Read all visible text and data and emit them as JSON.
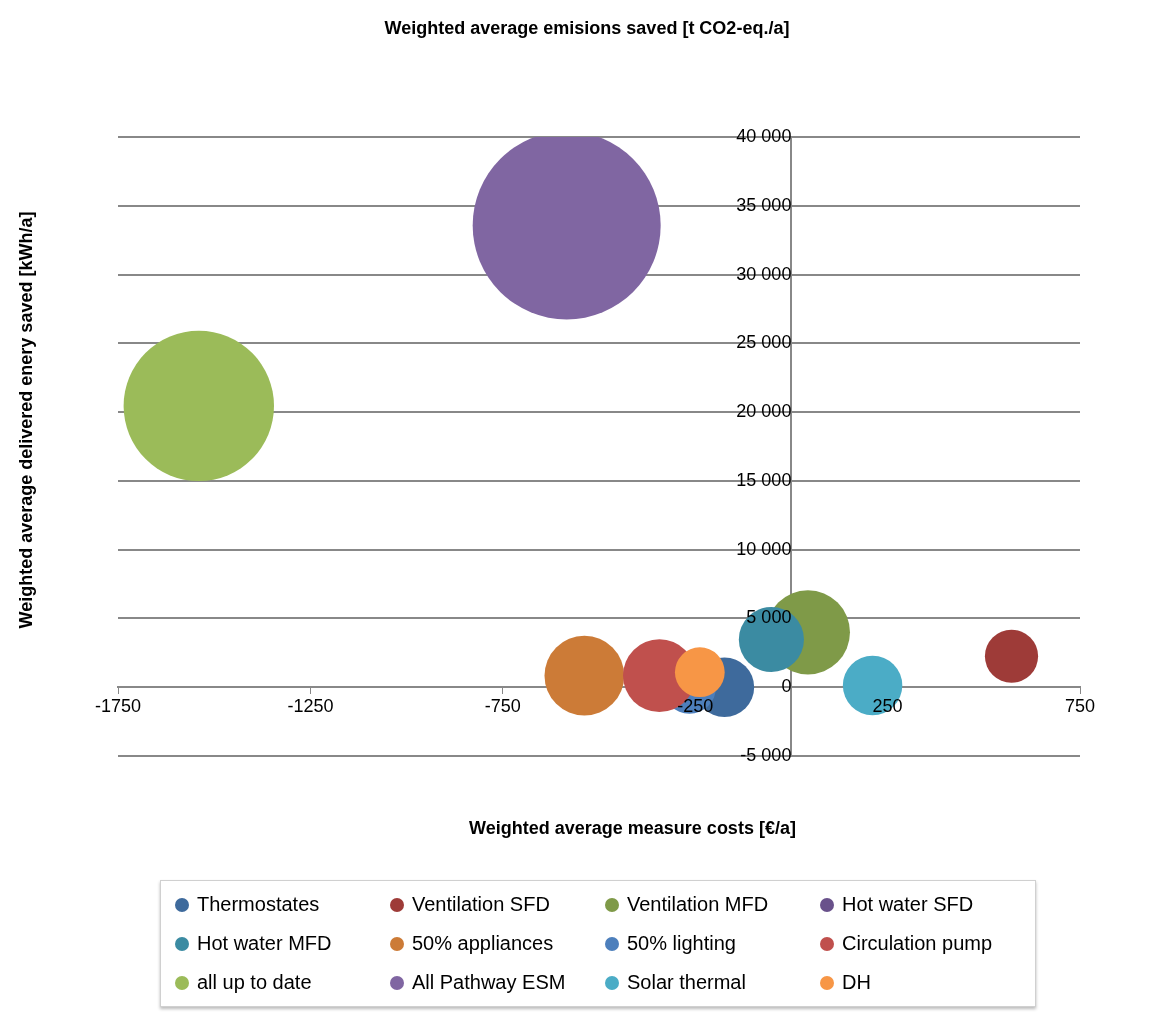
{
  "chart_data": {
    "type": "bubble",
    "title": "Weighted average emisions saved [t CO2-eq./a]",
    "xlabel": "Weighted average measure costs [€/a]",
    "ylabel": "Weighted average delivered enery saved [kWh/a]",
    "xlim": [
      -1750,
      750
    ],
    "xticks": [
      -1750,
      -1250,
      -750,
      -250,
      250,
      750
    ],
    "ylim": [
      -5000,
      40000
    ],
    "yticks": [
      {
        "value": -5000,
        "label": "-5 000"
      },
      {
        "value": 0,
        "label": "0"
      },
      {
        "value": 5000,
        "label": "5 000"
      },
      {
        "value": 10000,
        "label": "10 000"
      },
      {
        "value": 15000,
        "label": "15 000"
      },
      {
        "value": 20000,
        "label": "20 000"
      },
      {
        "value": 25000,
        "label": "25 000"
      },
      {
        "value": 30000,
        "label": "30 000"
      },
      {
        "value": 35000,
        "label": "35 000"
      },
      {
        "value": 40000,
        "label": "40 000"
      }
    ],
    "grid": "y",
    "legend": "bottom",
    "series": [
      {
        "name": "Thermostates",
        "color": "#3e6a9c",
        "x": [
          -174
        ],
        "values": [
          0
        ],
        "sizes": [
          0.1
        ]
      },
      {
        "name": "Ventilation SFD",
        "color": "#9e3b38",
        "x": [
          572
        ],
        "values": [
          2250
        ],
        "sizes": [
          0.08
        ]
      },
      {
        "name": "Ventilation MFD",
        "color": "#7f9a48",
        "x": [
          43
        ],
        "values": [
          3990
        ],
        "sizes": [
          0.2
        ]
      },
      {
        "name": "Hot water SFD",
        "color": "#69518b",
        "x": [
          null
        ],
        "values": [
          null
        ],
        "sizes": [
          null
        ]
      },
      {
        "name": "Hot water MFD",
        "color": "#3b8ba2",
        "x": [
          -52
        ],
        "values": [
          3470
        ],
        "sizes": [
          0.12
        ]
      },
      {
        "name": "50% appliances",
        "color": "#cc7b37",
        "x": [
          -538
        ],
        "values": [
          840
        ],
        "sizes": [
          0.18
        ]
      },
      {
        "name": "50% lighting",
        "color": "#4d7fbc",
        "x": [
          -265
        ],
        "values": [
          0
        ],
        "sizes": [
          0.08
        ]
      },
      {
        "name": "Circulation pump",
        "color": "#c0504d",
        "x": [
          -343
        ],
        "values": [
          840
        ],
        "sizes": [
          0.15
        ]
      },
      {
        "name": "all up to date",
        "color": "#9bbb59",
        "x": [
          -1540
        ],
        "values": [
          20450
        ],
        "sizes": [
          0.64
        ]
      },
      {
        "name": "All Pathway ESM",
        "color": "#8066a2",
        "x": [
          -584
        ],
        "values": [
          33570
        ],
        "sizes": [
          1
        ]
      },
      {
        "name": "Solar thermal",
        "color": "#4bacc6",
        "x": [
          211
        ],
        "values": [
          130
        ],
        "sizes": [
          0.1
        ]
      },
      {
        "name": "DH",
        "color": "#f79646",
        "x": [
          -238
        ],
        "values": [
          1090
        ],
        "sizes": [
          0.07
        ]
      }
    ]
  }
}
